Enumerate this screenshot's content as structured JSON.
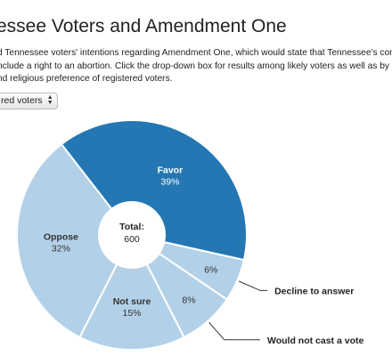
{
  "title": "essee Voters and Amendment One",
  "intro_lines": [
    "d Tennessee voters' intentions regarding Amendment One, which would state that Tennessee's con",
    "nclude a right to an abortion. Click the drop-down box for results among likely voters as well as by",
    "nd religious preference of registered voters."
  ],
  "selector": {
    "selected": "red voters"
  },
  "chart_data": {
    "type": "pie",
    "donut": true,
    "center_label": {
      "title": "Total:",
      "value": "600"
    },
    "slices": [
      {
        "name": "Favor",
        "value": 39,
        "label": "39%",
        "color": "#2477b3",
        "label_color": "#ffffff",
        "label_placement": "inside"
      },
      {
        "name": "Decline to answer",
        "value": 6,
        "label": "6%",
        "color": "#b2d1e8",
        "label_color": "#333333",
        "label_placement": "callout"
      },
      {
        "name": "Would not cast a vote",
        "value": 8,
        "label": "8%",
        "color": "#b2d1e8",
        "label_color": "#333333",
        "label_placement": "callout"
      },
      {
        "name": "Not sure",
        "value": 15,
        "label": "15%",
        "color": "#b2d1e8",
        "label_color": "#333333",
        "label_placement": "inside"
      },
      {
        "name": "Oppose",
        "value": 32,
        "label": "32%",
        "color": "#b2d1e8",
        "label_color": "#333333",
        "label_placement": "inside"
      }
    ]
  }
}
